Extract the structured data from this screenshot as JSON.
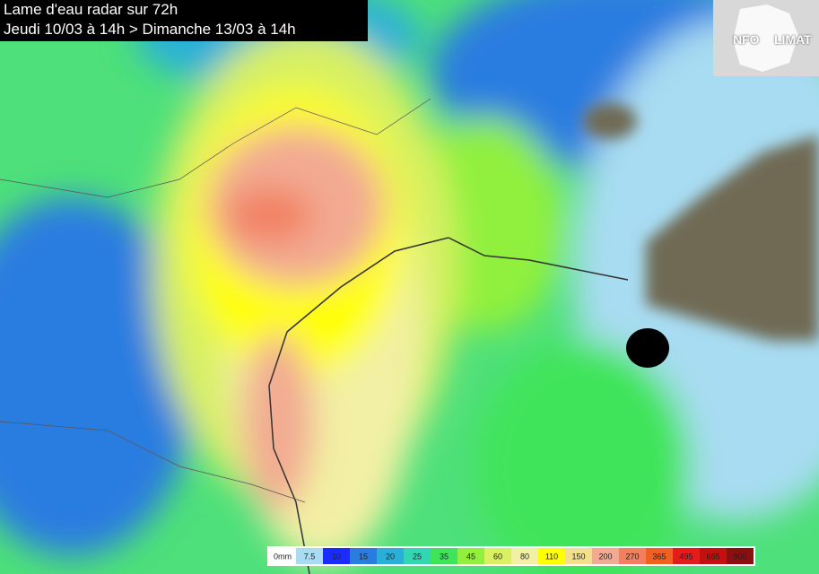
{
  "header": {
    "title": "Lame d'eau radar sur 72h",
    "subtitle": "Jeudi 10/03 à 14h > Dimanche 13/03 à 14h"
  },
  "logo": {
    "left": "NFO",
    "right": "LIMAT"
  },
  "legend": {
    "items": [
      {
        "label": "0mm",
        "color": "#ffffff"
      },
      {
        "label": "7.5",
        "color": "#a8dcf2"
      },
      {
        "label": "10",
        "color": "#1a2cff"
      },
      {
        "label": "15",
        "color": "#2a7de0"
      },
      {
        "label": "20",
        "color": "#2ab0d8"
      },
      {
        "label": "25",
        "color": "#33d6b4"
      },
      {
        "label": "35",
        "color": "#3fe45a"
      },
      {
        "label": "45",
        "color": "#90f03c"
      },
      {
        "label": "60",
        "color": "#d8f062"
      },
      {
        "label": "80",
        "color": "#f2f0a4"
      },
      {
        "label": "110",
        "color": "#ffff00"
      },
      {
        "label": "150",
        "color": "#f2e08e"
      },
      {
        "label": "200",
        "color": "#f2aa92"
      },
      {
        "label": "270",
        "color": "#f28060"
      },
      {
        "label": "365",
        "color": "#f06020"
      },
      {
        "label": "495",
        "color": "#e41c1c"
      },
      {
        "label": "665",
        "color": "#c01010"
      },
      {
        "label": "900",
        "color": "#8a0f0f"
      }
    ]
  }
}
